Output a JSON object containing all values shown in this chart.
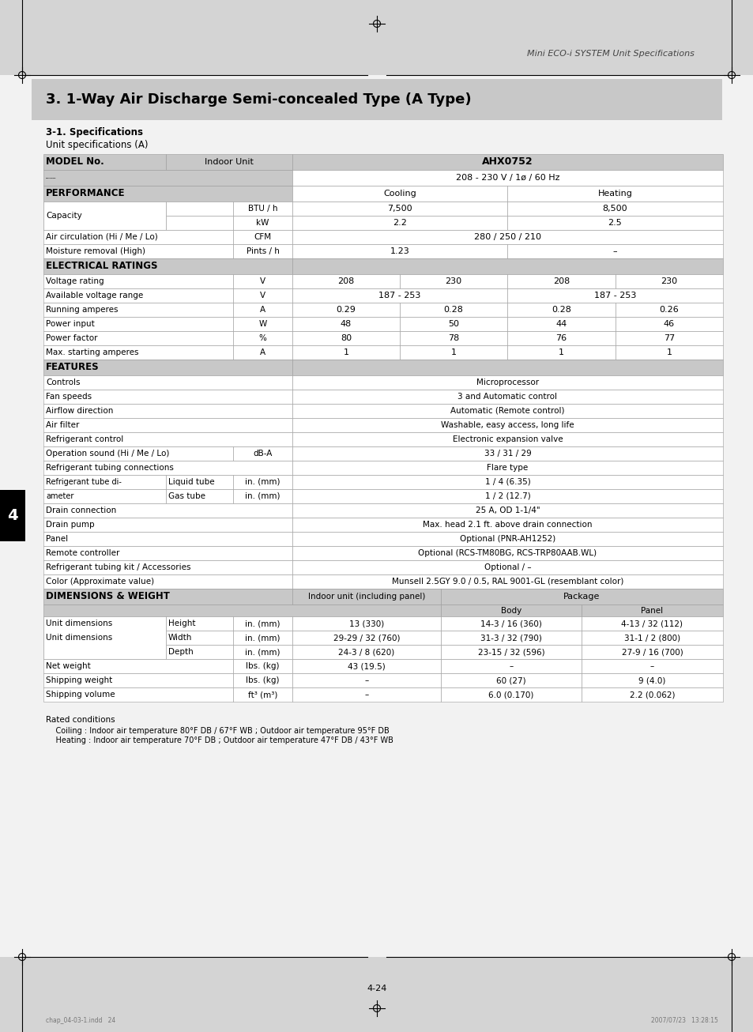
{
  "page_header": "Mini ECO-i SYSTEM Unit Specifications",
  "section_title": "3. 1-Way Air Discharge Semi-concealed Type (A Type)",
  "sub_title": "3-1. Specifications",
  "table_title": "Unit specifications (A)",
  "footer_text1": "Rated conditions",
  "footer_text2": "    Coiling : Indoor air temperature 80°F DB / 67°F WB ; Outdoor air temperature 95°F DB",
  "footer_text3": "    Heating : Indoor air temperature 70°F DB ; Outdoor air temperature 47°F DB / 43°F WB",
  "page_number": "4-24",
  "tab_label": "4",
  "gray_header": "#c8c8c8",
  "gray_section": "#d0d0d0",
  "white": "#ffffff",
  "page_bg": "#e8e8e8"
}
